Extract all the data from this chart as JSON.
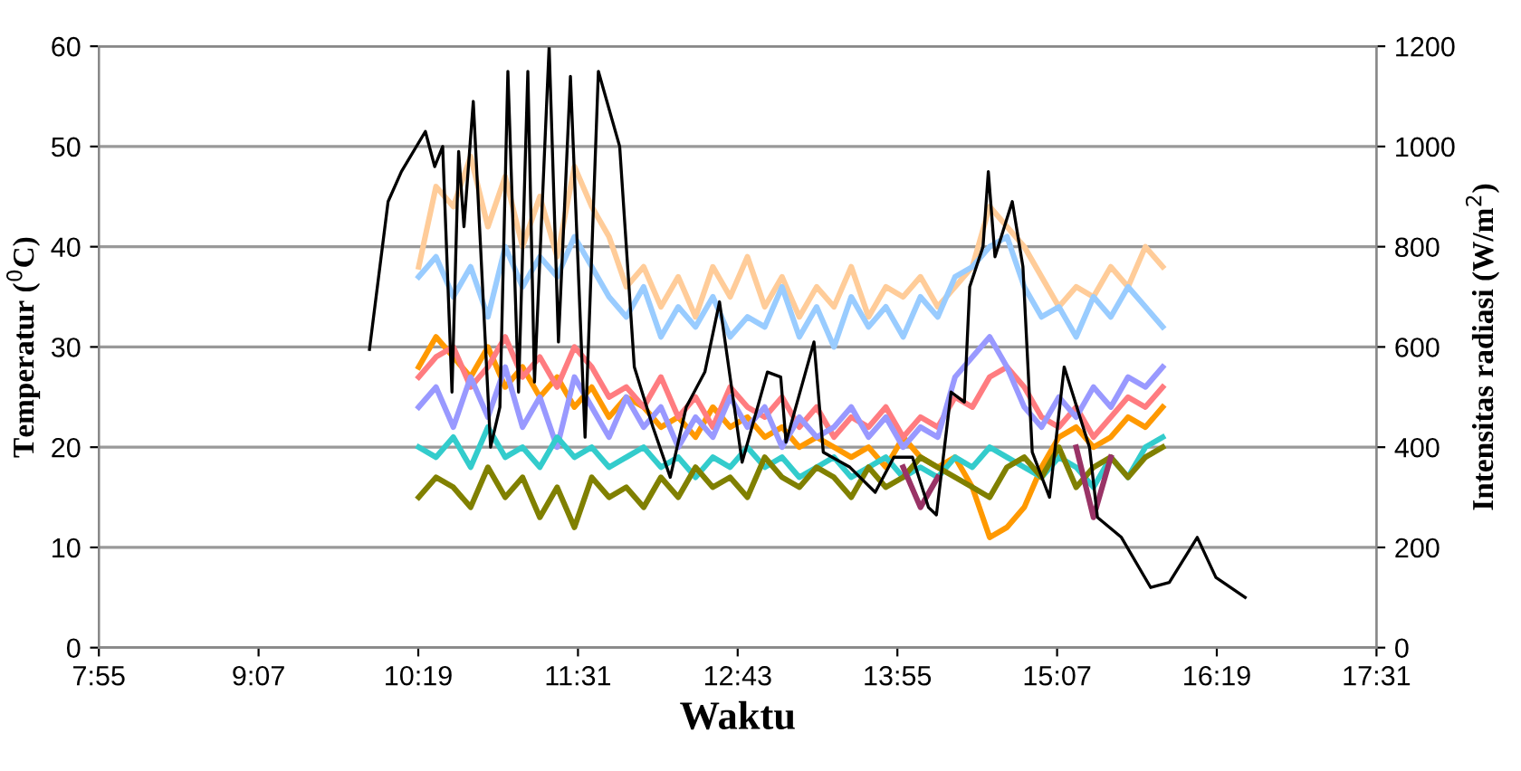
{
  "chart_data": {
    "type": "line",
    "xlabel": "Waktu",
    "ylabel": "Temperatur ($^{0}$C)",
    "y2label": "Intensitas radiasi (W/m$^{2}$)",
    "xlim": [
      7.9167,
      17.5167
    ],
    "xticks": [
      {
        "value": 7.9167,
        "label": "7:55"
      },
      {
        "value": 9.1167,
        "label": "9:07"
      },
      {
        "value": 10.3167,
        "label": "10:19"
      },
      {
        "value": 11.5167,
        "label": "11:31"
      },
      {
        "value": 12.7167,
        "label": "12:43"
      },
      {
        "value": 13.9167,
        "label": "13:55"
      },
      {
        "value": 15.1167,
        "label": "15:07"
      },
      {
        "value": 16.3167,
        "label": "16:19"
      },
      {
        "value": 17.5167,
        "label": "17:31"
      }
    ],
    "ylim": [
      0,
      60
    ],
    "yticks": [
      0,
      10,
      20,
      30,
      40,
      50,
      60
    ],
    "y2lim": [
      0,
      1200
    ],
    "y2ticks": [
      0,
      200,
      400,
      600,
      800,
      1000,
      1200
    ],
    "grid": "y",
    "legend": false,
    "marker": "none",
    "line_style": "solid",
    "x": [
      10.32,
      10.45,
      10.58,
      10.71,
      10.84,
      10.97,
      11.1,
      11.23,
      11.36,
      11.49,
      11.62,
      11.75,
      11.88,
      12.01,
      12.14,
      12.27,
      12.4,
      12.53,
      12.66,
      12.79,
      12.92,
      13.05,
      13.18,
      13.31,
      13.44,
      13.57,
      13.7,
      13.83,
      13.96,
      14.09,
      14.22,
      14.35,
      14.48,
      14.61,
      14.74,
      14.87,
      15.0,
      15.13,
      15.26,
      15.39,
      15.52,
      15.65,
      15.78,
      15.91
    ],
    "series": [
      {
        "color": "#ffcc99",
        "values": [
          38,
          46,
          44,
          49,
          42,
          47,
          40,
          45,
          39,
          48,
          44,
          41,
          36,
          38,
          34,
          37,
          33,
          38,
          35,
          39,
          34,
          37,
          33,
          36,
          34,
          38,
          33,
          36,
          35,
          37,
          34,
          36,
          38,
          44,
          42,
          40,
          37,
          34,
          36,
          35,
          38,
          36,
          40,
          38
        ]
      },
      {
        "color": "#99ccff",
        "values": [
          37,
          39,
          35,
          38,
          33,
          40,
          36,
          39,
          37,
          41,
          38,
          35,
          33,
          36,
          31,
          34,
          32,
          35,
          31,
          33,
          32,
          36,
          31,
          34,
          30,
          35,
          32,
          34,
          31,
          35,
          33,
          37,
          38,
          40,
          41,
          36,
          33,
          34,
          31,
          35,
          33,
          36,
          34,
          32
        ]
      },
      {
        "color": "#ff9900",
        "values": [
          28,
          31,
          29,
          27,
          30,
          26,
          28,
          25,
          27,
          24,
          26,
          23,
          25,
          24,
          22,
          23,
          21,
          24,
          22,
          23,
          21,
          22,
          20,
          21,
          20,
          19,
          20,
          18,
          21,
          19,
          18,
          19,
          16,
          11,
          12,
          14,
          18,
          21,
          22,
          20,
          21,
          23,
          22,
          24
        ]
      },
      {
        "color": "#ff7c80",
        "values": [
          27,
          29,
          30,
          26,
          28,
          31,
          27,
          29,
          26,
          30,
          28,
          25,
          26,
          24,
          27,
          23,
          25,
          22,
          26,
          24,
          23,
          25,
          22,
          24,
          21,
          23,
          22,
          24,
          21,
          23,
          22,
          25,
          24,
          27,
          28,
          26,
          23,
          22,
          24,
          21,
          23,
          25,
          24,
          26
        ]
      },
      {
        "color": "#9999ff",
        "values": [
          24,
          26,
          22,
          27,
          23,
          28,
          22,
          25,
          20,
          27,
          24,
          21,
          25,
          22,
          24,
          20,
          23,
          21,
          25,
          22,
          24,
          20,
          23,
          21,
          22,
          24,
          21,
          23,
          20,
          22,
          21,
          27,
          29,
          31,
          28,
          24,
          22,
          25,
          23,
          26,
          24,
          27,
          26,
          28
        ]
      },
      {
        "color": "#33cccc",
        "values": [
          20,
          19,
          21,
          18,
          22,
          19,
          20,
          18,
          21,
          19,
          20,
          18,
          19,
          20,
          18,
          19,
          17,
          19,
          18,
          20,
          18,
          19,
          17,
          18,
          19,
          17,
          18,
          19,
          17,
          18,
          17,
          19,
          18,
          20,
          19,
          18,
          17,
          19,
          18,
          16,
          19,
          17,
          20,
          21
        ]
      },
      {
        "color": "#808000",
        "values": [
          15,
          17,
          16,
          14,
          18,
          15,
          17,
          13,
          16,
          12,
          17,
          15,
          16,
          14,
          17,
          15,
          18,
          16,
          17,
          15,
          19,
          17,
          16,
          18,
          17,
          15,
          18,
          16,
          17,
          19,
          18,
          17,
          16,
          15,
          18,
          19,
          17,
          20,
          16,
          18,
          19,
          17,
          19,
          20
        ]
      },
      {
        "color": "#993366",
        "values": [
          null,
          null,
          null,
          null,
          null,
          null,
          null,
          null,
          null,
          null,
          null,
          null,
          null,
          null,
          null,
          null,
          null,
          null,
          null,
          null,
          null,
          null,
          null,
          null,
          null,
          null,
          null,
          null,
          18,
          14,
          17,
          null,
          null,
          null,
          null,
          null,
          null,
          null,
          20,
          13,
          19,
          null,
          null,
          null
        ]
      },
      {
        "color": "#000000",
        "axis": "y2",
        "x": [
          9.95,
          10.09,
          10.19,
          10.37,
          10.44,
          10.5,
          10.57,
          10.62,
          10.66,
          10.73,
          10.86,
          10.93,
          10.99,
          11.07,
          11.14,
          11.19,
          11.3,
          11.37,
          11.46,
          11.57,
          11.67,
          11.83,
          11.94,
          12.08,
          12.21,
          12.33,
          12.47,
          12.58,
          12.75,
          12.94,
          13.04,
          13.08,
          13.29,
          13.36,
          13.56,
          13.75,
          13.89,
          14.03,
          14.15,
          14.21,
          14.32,
          14.42,
          14.46,
          14.56,
          14.6,
          14.65,
          14.78,
          14.86,
          14.93,
          15.06,
          15.17,
          15.36,
          15.42,
          15.6,
          15.82,
          15.96,
          16.17,
          16.31,
          16.53
        ],
        "values": [
          595,
          890,
          950,
          1030,
          960,
          1000,
          510,
          990,
          840,
          1090,
          400,
          480,
          1150,
          510,
          1150,
          530,
          1200,
          610,
          1140,
          420,
          1150,
          1000,
          560,
          440,
          340,
          480,
          550,
          690,
          370,
          550,
          540,
          410,
          610,
          390,
          360,
          310,
          380,
          380,
          280,
          265,
          510,
          490,
          720,
          800,
          950,
          780,
          890,
          760,
          390,
          300,
          560,
          400,
          260,
          220,
          120,
          130,
          220,
          140,
          100
        ]
      }
    ]
  }
}
